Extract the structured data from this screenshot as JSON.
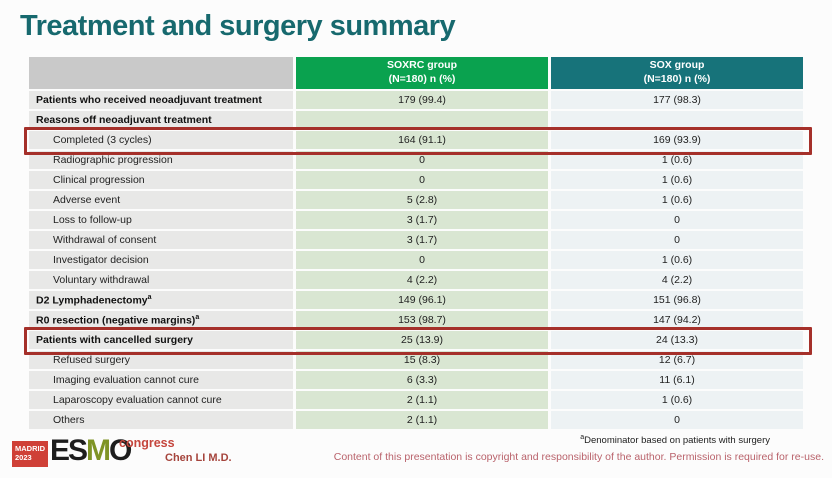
{
  "slide": {
    "title": "Treatment and surgery summary"
  },
  "table": {
    "columns": [
      {
        "label": "",
        "sublabel": ""
      },
      {
        "label": "SOXRC group",
        "sublabel": "(N=180)  n (%)"
      },
      {
        "label": "SOX group",
        "sublabel": "(N=180)  n (%)"
      }
    ],
    "rows": [
      {
        "label": "Patients who received neoadjuvant treatment",
        "bold": true,
        "indent": false,
        "soxrc": "179 (99.4)",
        "sox": "177 (98.3)"
      },
      {
        "label": "Reasons off neoadjuvant treatment",
        "bold": true,
        "indent": false,
        "soxrc": "",
        "sox": ""
      },
      {
        "label": "Completed (3 cycles)",
        "bold": false,
        "indent": true,
        "soxrc": "164 (91.1)",
        "sox": "169 (93.9)",
        "highlight": true
      },
      {
        "label": "Radiographic progression",
        "bold": false,
        "indent": true,
        "soxrc": "0",
        "sox": "1 (0.6)"
      },
      {
        "label": "Clinical progression",
        "bold": false,
        "indent": true,
        "soxrc": "0",
        "sox": "1 (0.6)"
      },
      {
        "label": "Adverse event",
        "bold": false,
        "indent": true,
        "soxrc": "5 (2.8)",
        "sox": "1 (0.6)"
      },
      {
        "label": "Loss to follow-up",
        "bold": false,
        "indent": true,
        "soxrc": "3 (1.7)",
        "sox": "0"
      },
      {
        "label": "Withdrawal of consent",
        "bold": false,
        "indent": true,
        "soxrc": "3 (1.7)",
        "sox": "0"
      },
      {
        "label": "Investigator decision",
        "bold": false,
        "indent": true,
        "soxrc": "0",
        "sox": "1 (0.6)"
      },
      {
        "label": "Voluntary withdrawal",
        "bold": false,
        "indent": true,
        "soxrc": "4 (2.2)",
        "sox": "4 (2.2)"
      },
      {
        "label": "D2 Lymphadenectomy",
        "sup": "a",
        "bold": true,
        "indent": false,
        "soxrc": "149 (96.1)",
        "sox": "151 (96.8)"
      },
      {
        "label": "R0 resection (negative margins)",
        "sup": "a",
        "bold": true,
        "indent": false,
        "soxrc": "153 (98.7)",
        "sox": "147 (94.2)"
      },
      {
        "label": "Patients with cancelled surgery",
        "bold": true,
        "indent": false,
        "soxrc": "25 (13.9)",
        "sox": "24 (13.3)",
        "highlight": true
      },
      {
        "label": "Refused surgery",
        "bold": false,
        "indent": true,
        "soxrc": "15 (8.3)",
        "sox": "12 (6.7)"
      },
      {
        "label": "Imaging evaluation cannot cure",
        "bold": false,
        "indent": true,
        "soxrc": "6 (3.3)",
        "sox": "11 (6.1)"
      },
      {
        "label": "Laparoscopy evaluation cannot cure",
        "bold": false,
        "indent": true,
        "soxrc": "2 (1.1)",
        "sox": "1 (0.6)"
      },
      {
        "label": "Others",
        "bold": false,
        "indent": true,
        "soxrc": "2 (1.1)",
        "sox": "0"
      }
    ]
  },
  "footer": {
    "logo": {
      "madrid_line1": "MADRID",
      "madrid_line2": "2023",
      "esmo_es": "ES",
      "esmo_m": "M",
      "esmo_o": "O",
      "congress": "congress"
    },
    "author": "Chen LI M.D.",
    "footnote_sup": "a",
    "footnote": "Denominator based on patients with surgery",
    "copyright": "Content of this presentation is copyright and responsibility of the author. Permission is required for re-use."
  },
  "colors": {
    "title_teal": "#17696e",
    "soxrc_header_green": "#0aa24f",
    "sox_header_teal": "#17737a",
    "soxrc_cell_green": "#d9e6d2",
    "sox_cell_blue": "#edf2f4",
    "label_cell_gray": "#e8e8e7",
    "corner_gray": "#c9c9c9",
    "highlight_red": "#a5302a",
    "logo_red": "#cf4037",
    "copyright_rose": "#b9626b"
  }
}
